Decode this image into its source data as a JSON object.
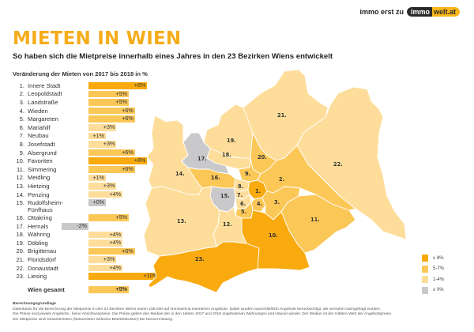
{
  "brand": {
    "prefix": "immo erst zu",
    "logo_dark": "immo",
    "logo_gold": "welt.at"
  },
  "header": {
    "title": "MIETEN IN WIEN",
    "subtitle": "So haben sich die Mietpreise innerhalb eines Jahres in den 23 Bezirken Wiens entwickelt"
  },
  "colors": {
    "ge8": "#f8aa0e",
    "5to7": "#fbc757",
    "1to4": "#fddd99",
    "le0": "#c9c9cb",
    "title": "#f6ac1a",
    "map_border": "#ffffff"
  },
  "table": {
    "heading": "Veränderung der Mieten von 2017 bis 2018 in %",
    "rows": [
      {
        "num": "1.",
        "name": "Innere Stadt",
        "value": "+8%"
      },
      {
        "num": "2.",
        "name": "Leopoldstadt",
        "value": "+5%"
      },
      {
        "num": "3.",
        "name": "Landstraße",
        "value": "+5%"
      },
      {
        "num": "4.",
        "name": "Wieden",
        "value": "+6%"
      },
      {
        "num": "5.",
        "name": "Margareten",
        "value": "+6%"
      },
      {
        "num": "6.",
        "name": "Mariahilf",
        "value": "+3%"
      },
      {
        "num": "7.",
        "name": "Neubau",
        "value": "+1%"
      },
      {
        "num": "8.",
        "name": "Josefstadt",
        "value": "+3%"
      },
      {
        "num": "9.",
        "name": "Alsergrund",
        "value": "+6%"
      },
      {
        "num": "10.",
        "name": "Favoriten",
        "value": "+8%"
      },
      {
        "num": "11.",
        "name": "Simmering",
        "value": "+6%"
      },
      {
        "num": "12.",
        "name": "Meidling",
        "value": "+1%"
      },
      {
        "num": "13.",
        "name": "Hietzing",
        "value": "+3%"
      },
      {
        "num": "14.",
        "name": "Penzing",
        "value": "+4%"
      },
      {
        "num": "15.",
        "name": "Rudolfsheim-",
        "name2": "Fünfhaus",
        "value": "+0%"
      },
      {
        "num": "16.",
        "name": "Ottakring",
        "value": "+5%"
      },
      {
        "num": "17.",
        "name": "Hernals",
        "value": "-2%"
      },
      {
        "num": "18.",
        "name": "Währing",
        "value": "+4%"
      },
      {
        "num": "19.",
        "name": "Döbling",
        "value": "+4%"
      },
      {
        "num": "20.",
        "name": "Brigittenau",
        "value": "+6%"
      },
      {
        "num": "21.",
        "name": "Floridsdorf",
        "value": "+3%"
      },
      {
        "num": "22.",
        "name": "Donaustadt",
        "value": "+4%"
      },
      {
        "num": "23.",
        "name": "Liesing",
        "value": "+10%"
      }
    ],
    "total": {
      "name": "Wien gesamt",
      "value": "+5%"
    }
  },
  "map": {
    "labels": [
      "1.",
      "2.",
      "3.",
      "4.",
      "5.",
      "6.",
      "7.",
      "8.",
      "9.",
      "10.",
      "11.",
      "12.",
      "13.",
      "14.",
      "15.",
      "16.",
      "17.",
      "18.",
      "19.",
      "20.",
      "21.",
      "22.",
      "23."
    ]
  },
  "legend": [
    {
      "label": "≥ 8%",
      "color": "#f8aa0e"
    },
    {
      "label": "5-7%",
      "color": "#fbc757"
    },
    {
      "label": "1-4%",
      "color": "#fddd99"
    },
    {
      "label": "≤ 0%",
      "color": "#c9c9cb"
    }
  ],
  "footnote": {
    "title": "Berechnungsgrundlage",
    "line1": "Datenbasis für die Berechnung der Mietpreise in den 23 Bezirken Wiens waren 159.000 auf immowelt.at inserierten Angebote. Dabei wurden ausschließlich Angebote berücksichtigt, die vermehrt nachgefragt wurden.",
    "line2": "Die Preise sind jeweils Angebots-, keine Abschlusspreise. Die Preise geben den Median der in den Jahren 2017 und 2018 angebotenen Wohnungen und Häuser wieder. Der Median ist der mittlere Wert der Angebotspreise.",
    "line3": "Die Mietpreise sind Gesamtmieten (Nettomieten inklusive Betriebskosten) bei Neuvermietung."
  },
  "chart_data": {
    "type": "bar",
    "title": "MIETEN IN WIEN",
    "subtitle": "So haben sich die Mietpreise innerhalb eines Jahres in den 23 Bezirken Wiens entwickelt",
    "xlabel": "",
    "ylabel": "Veränderung der Mieten von 2017 bis 2018 in %",
    "orientation": "horizontal",
    "categories": [
      "1. Innere Stadt",
      "2. Leopoldstadt",
      "3. Landstraße",
      "4. Wieden",
      "5. Margareten",
      "6. Mariahilf",
      "7. Neubau",
      "8. Josefstadt",
      "9. Alsergrund",
      "10. Favoriten",
      "11. Simmering",
      "12. Meidling",
      "13. Hietzing",
      "14. Penzing",
      "15. Rudolfsheim-Fünfhaus",
      "16. Ottakring",
      "17. Hernals",
      "18. Währing",
      "19. Döbling",
      "20. Brigittenau",
      "21. Floridsdorf",
      "22. Donaustadt",
      "23. Liesing",
      "Wien gesamt"
    ],
    "values": [
      8,
      5,
      5,
      6,
      6,
      3,
      1,
      3,
      6,
      8,
      6,
      1,
      3,
      4,
      0,
      5,
      -2,
      4,
      4,
      6,
      3,
      4,
      10,
      5
    ],
    "unit": "%",
    "legend": [
      "≥ 8%",
      "5-7%",
      "1-4%",
      "≤ 0%"
    ],
    "legend_position": "bottom-right",
    "grid": false,
    "companion": "choropleth map of the 23 districts of Vienna colored by legend classes"
  }
}
